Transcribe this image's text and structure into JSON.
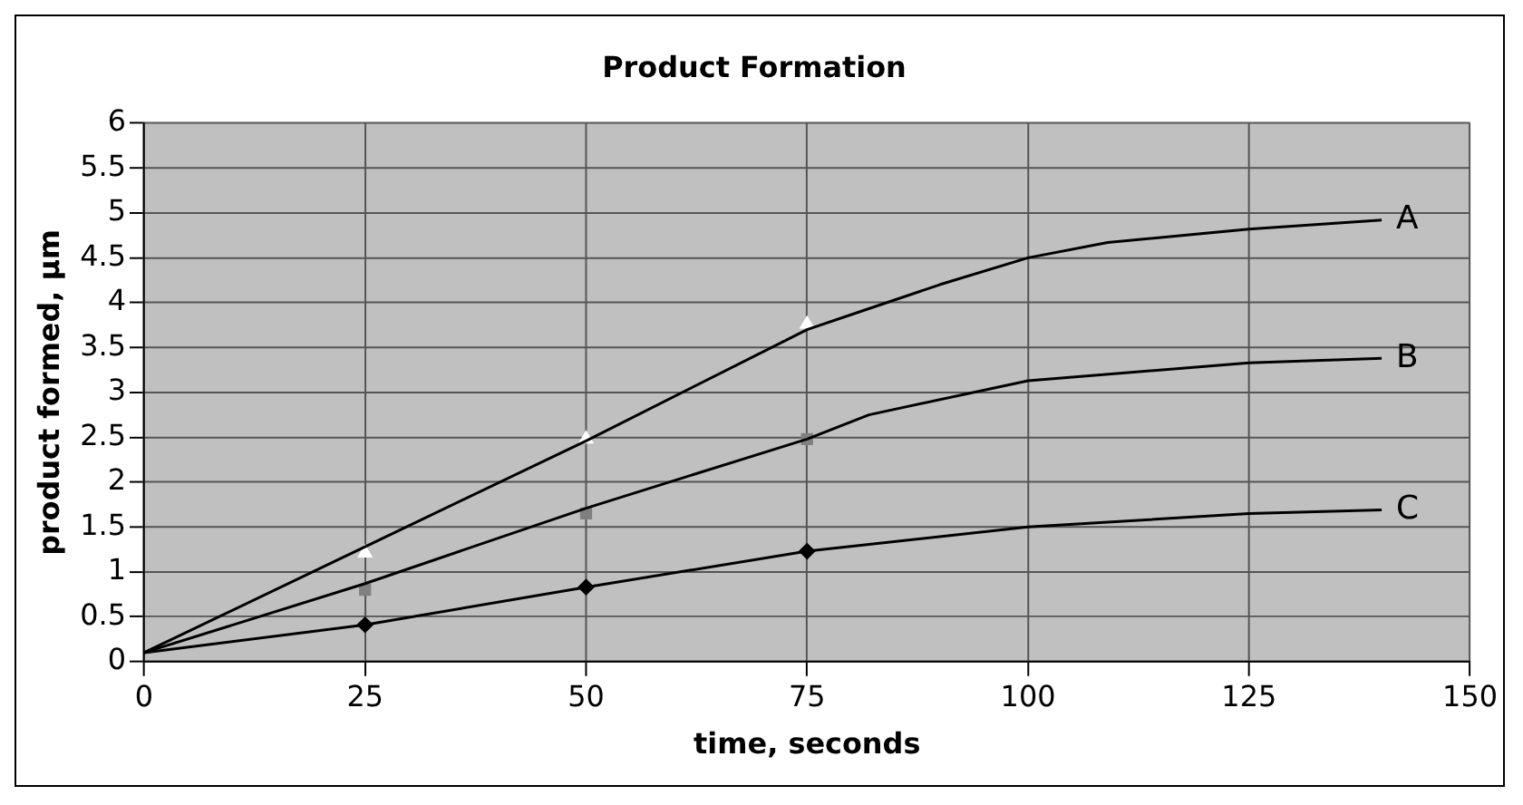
{
  "chart_data": {
    "type": "line",
    "title": "Product Formation",
    "xlabel": "time, seconds",
    "ylabel": "product formed, µm",
    "xlim": [
      0,
      150
    ],
    "xticks": [
      0,
      25,
      50,
      75,
      100,
      125,
      150
    ],
    "ylim": [
      0,
      6
    ],
    "yticks": [
      0,
      0.5,
      1,
      1.5,
      2,
      2.5,
      3,
      3.5,
      4,
      4.5,
      5,
      5.5,
      6
    ],
    "grid": true,
    "legend": false,
    "marker": "none",
    "line_style": "solid",
    "series": [
      {
        "name": "A",
        "color": "#000000",
        "x": [
          0,
          25,
          50,
          75,
          81,
          90,
          100,
          109,
          125,
          140
        ],
        "values": [
          0.1,
          1.28,
          2.46,
          3.7,
          3.9,
          4.2,
          4.5,
          4.67,
          4.82,
          4.92
        ]
      },
      {
        "name": "B",
        "color": "#000000",
        "x": [
          0,
          25,
          50,
          75,
          82,
          100,
          125,
          140
        ],
        "values": [
          0.1,
          0.87,
          1.71,
          2.48,
          2.75,
          3.13,
          3.33,
          3.38
        ]
      },
      {
        "name": "C",
        "color": "#000000",
        "x": [
          0,
          25,
          50,
          75,
          100,
          125,
          140
        ],
        "values": [
          0.1,
          0.41,
          0.83,
          1.23,
          1.5,
          1.65,
          1.69
        ]
      },
      {
        "type": "scatter",
        "marker": "triangle",
        "color": "#ffffff",
        "x": [
          25,
          50,
          75
        ],
        "values": [
          1.21,
          2.48,
          3.76
        ]
      },
      {
        "type": "scatter",
        "marker": "square",
        "color": "#808080",
        "x": [
          25,
          50,
          75
        ],
        "values": [
          0.8,
          1.65,
          2.48
        ]
      },
      {
        "type": "scatter",
        "marker": "diamond",
        "color": "#000000",
        "x": [
          25,
          50,
          75
        ],
        "values": [
          0.41,
          0.83,
          1.23
        ]
      }
    ]
  }
}
